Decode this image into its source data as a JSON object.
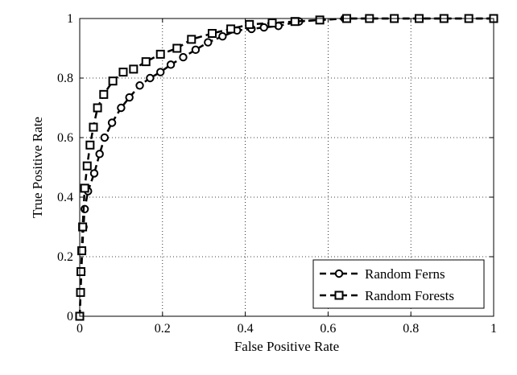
{
  "chart_data": {
    "type": "line",
    "title": "",
    "xlabel": "False Positive Rate",
    "ylabel": "True Positive Rate",
    "xlim": [
      0,
      1
    ],
    "ylim": [
      0,
      1
    ],
    "xticks": [
      "0",
      "0.2",
      "0.4",
      "0.6",
      "0.8",
      "1"
    ],
    "yticks": [
      "0",
      "0.2",
      "0.4",
      "0.6",
      "0.8",
      "1"
    ],
    "grid": true,
    "grid_style": "dotted",
    "legend_position": "bottom-right",
    "series": [
      {
        "name": "Random Ferns",
        "marker": "circle",
        "line_style": "dashed",
        "color": "#000000",
        "x": [
          0,
          0.002,
          0.004,
          0.006,
          0.009,
          0.012,
          0.02,
          0.035,
          0.048,
          0.06,
          0.078,
          0.1,
          0.12,
          0.145,
          0.17,
          0.195,
          0.22,
          0.25,
          0.28,
          0.31,
          0.345,
          0.38,
          0.415,
          0.445,
          0.48,
          0.53,
          0.58,
          0.64,
          0.7,
          0.76,
          0.82,
          0.88,
          0.94,
          1.0
        ],
        "y": [
          0,
          0.08,
          0.15,
          0.22,
          0.3,
          0.36,
          0.42,
          0.48,
          0.545,
          0.6,
          0.65,
          0.7,
          0.735,
          0.775,
          0.8,
          0.82,
          0.845,
          0.87,
          0.895,
          0.92,
          0.94,
          0.96,
          0.965,
          0.97,
          0.975,
          0.99,
          0.995,
          1.0,
          1.0,
          1.0,
          1.0,
          1.0,
          1.0,
          1.0
        ]
      },
      {
        "name": "Random Forests",
        "marker": "square",
        "line_style": "dashed",
        "color": "#000000",
        "x": [
          0,
          0.002,
          0.003,
          0.005,
          0.007,
          0.012,
          0.018,
          0.025,
          0.033,
          0.043,
          0.058,
          0.08,
          0.105,
          0.13,
          0.16,
          0.195,
          0.235,
          0.27,
          0.32,
          0.365,
          0.41,
          0.465,
          0.52,
          0.58,
          0.645,
          0.7,
          0.76,
          0.82,
          0.88,
          0.94,
          1.0
        ],
        "y": [
          0,
          0.08,
          0.15,
          0.22,
          0.3,
          0.43,
          0.505,
          0.575,
          0.635,
          0.7,
          0.745,
          0.79,
          0.82,
          0.83,
          0.855,
          0.88,
          0.9,
          0.93,
          0.95,
          0.965,
          0.98,
          0.985,
          0.99,
          0.995,
          1.0,
          1.0,
          1.0,
          1.0,
          1.0,
          1.0,
          1.0
        ]
      }
    ]
  }
}
